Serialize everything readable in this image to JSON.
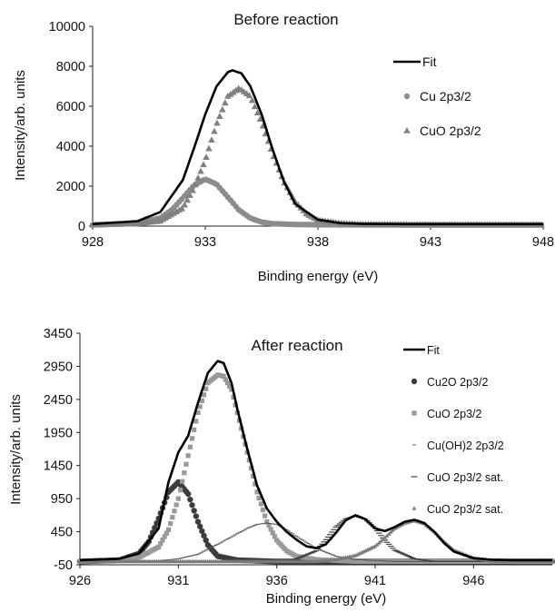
{
  "chart_data": [
    {
      "type": "line",
      "title": "Before reaction",
      "xlabel": "Binding energy (eV)",
      "ylabel": "Intensity/arb. units",
      "xlim": [
        928,
        948
      ],
      "ylim": [
        0,
        10000
      ],
      "xticks": [
        928,
        933,
        938,
        943,
        948
      ],
      "yticks": [
        0,
        2000,
        4000,
        6000,
        8000,
        10000
      ],
      "grid": false,
      "legend_position": "right",
      "series": [
        {
          "name": "Fit",
          "style": "line",
          "color": "#000000",
          "x": [
            928,
            930,
            931,
            932,
            932.5,
            933,
            933.5,
            934,
            934.2,
            934.6,
            935,
            935.5,
            936,
            936.5,
            937,
            938,
            939,
            940,
            942,
            945,
            948
          ],
          "y": [
            100,
            250,
            700,
            2300,
            3900,
            5600,
            7000,
            7700,
            7800,
            7650,
            7000,
            5600,
            3800,
            2200,
            1100,
            320,
            150,
            110,
            100,
            100,
            100
          ]
        },
        {
          "name": "Cu 2p3/2",
          "style": "circle",
          "color": "#8c8c8c",
          "x": [
            928,
            930,
            931,
            931.5,
            932,
            932.5,
            933,
            933.5,
            934,
            934.5,
            935,
            935.5,
            936,
            937,
            938,
            940,
            943,
            948
          ],
          "y": [
            60,
            140,
            400,
            800,
            1400,
            2050,
            2350,
            2100,
            1450,
            800,
            400,
            200,
            120,
            80,
            70,
            60,
            60,
            60
          ]
        },
        {
          "name": "CuO 2p3/2",
          "style": "triangle",
          "color": "#808080",
          "x": [
            928,
            930,
            931,
            932,
            932.5,
            933,
            933.5,
            934,
            934.5,
            935,
            935.5,
            936,
            936.5,
            937,
            937.5,
            938,
            939,
            940,
            943,
            948
          ],
          "y": [
            60,
            120,
            260,
            900,
            1900,
            3300,
            5100,
            6500,
            6900,
            6500,
            5200,
            3600,
            2200,
            1200,
            600,
            300,
            140,
            90,
            70,
            60
          ]
        }
      ]
    },
    {
      "type": "line",
      "title": "After reaction",
      "xlabel": "Binding energy (eV)",
      "ylabel": "Intensity/arb. units",
      "xlim": [
        926,
        950
      ],
      "ylim": [
        -50,
        3450
      ],
      "xticks": [
        926,
        931,
        936,
        941,
        946
      ],
      "yticks": [
        -50,
        450,
        950,
        1450,
        1950,
        2450,
        2950,
        3450
      ],
      "grid": false,
      "legend_position": "right",
      "series": [
        {
          "name": "Fit",
          "style": "line",
          "color": "#000000",
          "x": [
            926,
            928,
            929,
            930,
            930.5,
            931,
            931.5,
            932,
            932.5,
            933,
            933.3,
            933.7,
            934,
            934.5,
            935,
            935.5,
            936,
            936.5,
            937,
            937.5,
            938,
            938.5,
            939,
            939.5,
            940,
            940.5,
            941,
            941.5,
            942,
            942.5,
            943,
            943.5,
            944,
            944.5,
            945,
            946,
            947,
            948,
            950
          ],
          "y": [
            20,
            40,
            120,
            500,
            1200,
            1650,
            1900,
            2400,
            2850,
            3030,
            3000,
            2700,
            2300,
            1700,
            1150,
            800,
            600,
            450,
            330,
            230,
            200,
            260,
            430,
            620,
            700,
            640,
            500,
            460,
            520,
            600,
            630,
            580,
            450,
            280,
            150,
            50,
            25,
            20,
            20
          ]
        },
        {
          "name": "Cu2O 2p3/2",
          "style": "circle",
          "color": "#3c3c3c",
          "x": [
            926,
            928,
            929,
            929.5,
            930,
            930.5,
            931,
            931.5,
            932,
            932.5,
            933,
            934,
            936,
            940,
            950
          ],
          "y": [
            0,
            20,
            120,
            300,
            650,
            1050,
            1200,
            1020,
            600,
            250,
            80,
            20,
            0,
            0,
            0
          ]
        },
        {
          "name": "CuO 2p3/2",
          "style": "square",
          "color": "#999999",
          "x": [
            926,
            928,
            929,
            930,
            930.5,
            931,
            931.5,
            932,
            932.5,
            933,
            933.3,
            933.7,
            934,
            934.5,
            935,
            935.5,
            936,
            936.5,
            937,
            938,
            940,
            950
          ],
          "y": [
            0,
            20,
            60,
            220,
            480,
            950,
            1600,
            2250,
            2700,
            2820,
            2800,
            2600,
            2250,
            1650,
            1050,
            600,
            320,
            160,
            80,
            30,
            0,
            0
          ]
        },
        {
          "name": "Cu(OH)2 2p3/2",
          "style": "dotted",
          "color": "#555555",
          "x": [
            926,
            930,
            931,
            932,
            933,
            934,
            934.5,
            935,
            935.5,
            936,
            936.5,
            937,
            938,
            939,
            940,
            942,
            950
          ],
          "y": [
            0,
            10,
            40,
            110,
            260,
            420,
            500,
            560,
            580,
            560,
            480,
            380,
            200,
            80,
            30,
            0,
            0
          ]
        },
        {
          "name": "CuO 2p3/2 sat.",
          "style": "dash",
          "color": "#444444",
          "x": [
            926,
            936,
            937,
            938,
            938.5,
            939,
            939.5,
            940,
            940.5,
            941,
            941.5,
            942,
            943,
            944,
            950
          ],
          "y": [
            0,
            0,
            40,
            160,
            330,
            520,
            640,
            690,
            640,
            500,
            320,
            170,
            40,
            0,
            0
          ]
        },
        {
          "name": "CuO 2p3/2 sat.",
          "style": "tri",
          "color": "#7a7a7a",
          "x": [
            926,
            938,
            939,
            940,
            941,
            941.5,
            942,
            942.5,
            943,
            943.5,
            944,
            944.5,
            945,
            946,
            947,
            950
          ],
          "y": [
            0,
            0,
            30,
            90,
            230,
            360,
            500,
            580,
            620,
            570,
            450,
            300,
            170,
            50,
            0,
            0
          ]
        }
      ]
    }
  ]
}
